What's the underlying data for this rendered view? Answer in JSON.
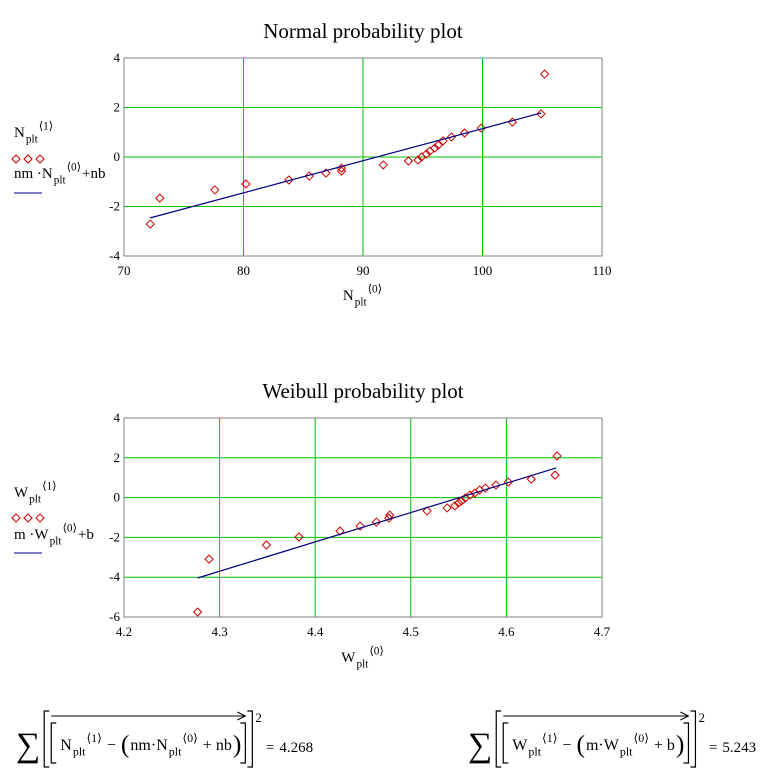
{
  "chart_data": [
    {
      "type": "scatter",
      "title": "Normal probability plot",
      "x_label": [
        {
          "text": "N",
          "style": "normal"
        },
        {
          "text": "plt",
          "style": "sub"
        },
        {
          "text": "⟨0⟩",
          "style": "sup"
        }
      ],
      "xlim": [
        70,
        110
      ],
      "xticks": [
        70,
        80,
        90,
        100,
        110
      ],
      "ylim": [
        -4,
        4
      ],
      "yticks": [
        -4,
        -2,
        0,
        2,
        4
      ],
      "grid": true,
      "series": [
        {
          "name": [
            {
              "text": "N",
              "style": "normal"
            },
            {
              "text": "plt",
              "style": "sub"
            },
            {
              "text": "⟨1⟩",
              "style": "sup"
            }
          ],
          "mode": "markers",
          "color": "#cc0000",
          "x": [
            72.2,
            73.0,
            77.6,
            80.2,
            83.8,
            85.5,
            86.9,
            88.2,
            88.2,
            91.7,
            93.8,
            94.6,
            94.9,
            95.3,
            95.6,
            96.0,
            96.3,
            96.7,
            97.4,
            98.5,
            99.9,
            102.5,
            104.9,
            105.2
          ],
          "values": [
            -2.71,
            -1.66,
            -1.33,
            -1.09,
            -0.93,
            -0.77,
            -0.65,
            -0.57,
            -0.45,
            -0.32,
            -0.16,
            -0.12,
            0.0,
            0.12,
            0.24,
            0.36,
            0.48,
            0.65,
            0.81,
            0.97,
            1.17,
            1.41,
            1.74,
            3.35
          ]
        },
        {
          "name": [
            {
              "text": "nm ·N",
              "style": "normal"
            },
            {
              "text": "plt",
              "style": "sub"
            },
            {
              "text": "⟨0⟩",
              "style": "sup"
            },
            {
              "text": "+nb",
              "style": "normal"
            }
          ],
          "mode": "line",
          "color": "#000080",
          "x": [
            72.2,
            104.9
          ],
          "values": [
            -2.46,
            1.78
          ]
        }
      ]
    },
    {
      "type": "scatter",
      "title": "Weibull probability plot",
      "x_label": [
        {
          "text": "W",
          "style": "normal"
        },
        {
          "text": "plt",
          "style": "sub"
        },
        {
          "text": "⟨0⟩",
          "style": "sup"
        }
      ],
      "xlim": [
        4.2,
        4.7
      ],
      "xticks": [
        4.2,
        4.3,
        4.4,
        4.5,
        4.6,
        4.7
      ],
      "ylim": [
        -6,
        4
      ],
      "yticks": [
        -6,
        -4,
        -2,
        0,
        2,
        4
      ],
      "grid": true,
      "series": [
        {
          "name": [
            {
              "text": "W",
              "style": "normal"
            },
            {
              "text": "plt",
              "style": "sub"
            },
            {
              "text": "⟨1⟩",
              "style": "sup"
            }
          ],
          "mode": "markers",
          "color": "#cc0000",
          "x": [
            4.277,
            4.289,
            4.349,
            4.383,
            4.426,
            4.447,
            4.464,
            4.477,
            4.478,
            4.517,
            4.538,
            4.546,
            4.55,
            4.553,
            4.557,
            4.562,
            4.567,
            4.572,
            4.578,
            4.589,
            4.602,
            4.626,
            4.651,
            4.653
          ],
          "values": [
            -5.75,
            -3.09,
            -2.38,
            -1.98,
            -1.68,
            -1.43,
            -1.23,
            -1.03,
            -0.88,
            -0.67,
            -0.52,
            -0.42,
            -0.27,
            -0.17,
            -0.02,
            0.13,
            0.23,
            0.38,
            0.48,
            0.63,
            0.78,
            0.93,
            1.13,
            2.09
          ]
        },
        {
          "name": [
            {
              "text": "m ·W",
              "style": "normal"
            },
            {
              "text": "plt",
              "style": "sub"
            },
            {
              "text": "⟨0⟩",
              "style": "sup"
            },
            {
              "text": "+b",
              "style": "normal"
            }
          ],
          "mode": "line",
          "color": "#000080",
          "x": [
            4.277,
            4.652
          ],
          "values": [
            -4.04,
            1.49
          ]
        }
      ]
    }
  ],
  "formulas": [
    {
      "sigma": "∑",
      "power": "2",
      "equals": "=",
      "result": 4.268,
      "inner": [
        {
          "text": "N",
          "style": "normal"
        },
        {
          "text": "plt",
          "style": "sub"
        },
        {
          "text": "⟨1⟩",
          "style": "sup"
        },
        {
          "text": " − ",
          "style": "normal"
        },
        {
          "text": "(",
          "style": "paren"
        },
        {
          "text": "nm·N",
          "style": "normal"
        },
        {
          "text": "plt",
          "style": "sub"
        },
        {
          "text": "⟨0⟩",
          "style": "sup"
        },
        {
          "text": " + nb",
          "style": "normal"
        },
        {
          "text": ")",
          "style": "paren"
        }
      ]
    },
    {
      "sigma": "∑",
      "power": "2",
      "equals": "=",
      "result": 5.243,
      "inner": [
        {
          "text": "W",
          "style": "normal"
        },
        {
          "text": "plt",
          "style": "sub"
        },
        {
          "text": "⟨1⟩",
          "style": "sup"
        },
        {
          "text": " − ",
          "style": "normal"
        },
        {
          "text": "(",
          "style": "paren"
        },
        {
          "text": "m·W",
          "style": "normal"
        },
        {
          "text": "plt",
          "style": "sub"
        },
        {
          "text": "⟨0⟩",
          "style": "sup"
        },
        {
          "text": " + b",
          "style": "normal"
        },
        {
          "text": ")",
          "style": "paren"
        }
      ]
    }
  ]
}
